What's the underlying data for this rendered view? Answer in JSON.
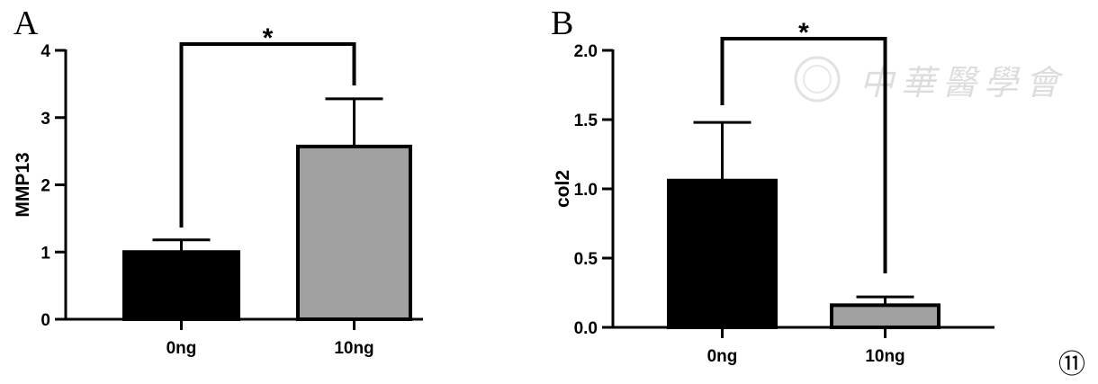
{
  "figure_number": "⑪",
  "watermark": "中華醫學會",
  "colors": {
    "group_0ng": "#000000",
    "group_10ng": "#a0a0a0"
  },
  "chart_data": [
    {
      "panel": "A",
      "type": "bar",
      "title": "",
      "xlabel": "",
      "ylabel": "MMP13",
      "categories": [
        "0ng",
        "10ng"
      ],
      "values": [
        1.0,
        2.57
      ],
      "error_upper": [
        1.18,
        3.28
      ],
      "ylim": [
        0,
        4
      ],
      "yticks": [
        "0",
        "1",
        "2",
        "3",
        "4"
      ],
      "ytick_values": [
        0,
        1,
        2,
        3,
        4
      ],
      "significance": {
        "between": [
          "0ng",
          "10ng"
        ],
        "label": "*"
      },
      "grid": false
    },
    {
      "panel": "B",
      "type": "bar",
      "title": "",
      "xlabel": "",
      "ylabel": "col2",
      "categories": [
        "0ng",
        "10ng"
      ],
      "values": [
        1.06,
        0.16
      ],
      "error_upper": [
        1.48,
        0.22
      ],
      "ylim": [
        0,
        2.0
      ],
      "yticks": [
        "0.0",
        "0.5",
        "1.0",
        "1.5",
        "2.0"
      ],
      "ytick_values": [
        0,
        0.5,
        1.0,
        1.5,
        2.0
      ],
      "significance": {
        "between": [
          "0ng",
          "10ng"
        ],
        "label": "*"
      },
      "grid": false
    }
  ]
}
